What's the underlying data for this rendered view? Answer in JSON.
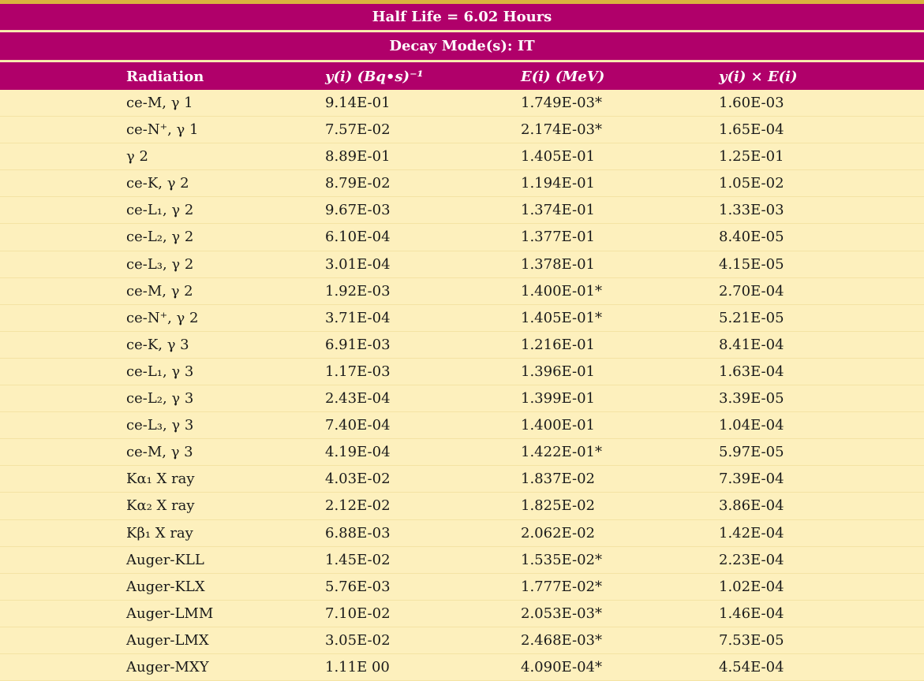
{
  "title_band": "Half Life = 6.02 Hours",
  "mode_band": "Decay Mode(s): IT",
  "headers": {
    "radiation": "Radiation",
    "y": "y(i) (Bq•s)⁻¹",
    "e": "E(i) (MeV)",
    "ye": "y(i) × E(i)"
  },
  "rows": [
    {
      "radiation": "ce-M, γ 1",
      "y": "9.14E-01",
      "e": "1.749E-03*",
      "ye": "1.60E-03"
    },
    {
      "radiation": "ce-N⁺, γ 1",
      "y": "7.57E-02",
      "e": "2.174E-03*",
      "ye": "1.65E-04"
    },
    {
      "radiation": "γ 2",
      "y": "8.89E-01",
      "e": "1.405E-01",
      "ye": "1.25E-01"
    },
    {
      "radiation": "ce-K, γ 2",
      "y": "8.79E-02",
      "e": "1.194E-01",
      "ye": "1.05E-02"
    },
    {
      "radiation": "ce-L₁, γ 2",
      "y": "9.67E-03",
      "e": "1.374E-01",
      "ye": "1.33E-03"
    },
    {
      "radiation": "ce-L₂, γ 2",
      "y": "6.10E-04",
      "e": "1.377E-01",
      "ye": "8.40E-05"
    },
    {
      "radiation": "ce-L₃, γ 2",
      "y": "3.01E-04",
      "e": "1.378E-01",
      "ye": "4.15E-05"
    },
    {
      "radiation": "ce-M, γ 2",
      "y": "1.92E-03",
      "e": "1.400E-01*",
      "ye": "2.70E-04"
    },
    {
      "radiation": "ce-N⁺, γ 2",
      "y": "3.71E-04",
      "e": "1.405E-01*",
      "ye": "5.21E-05"
    },
    {
      "radiation": "ce-K, γ 3",
      "y": "6.91E-03",
      "e": "1.216E-01",
      "ye": "8.41E-04"
    },
    {
      "radiation": "ce-L₁, γ 3",
      "y": "1.17E-03",
      "e": "1.396E-01",
      "ye": "1.63E-04"
    },
    {
      "radiation": "ce-L₂, γ 3",
      "y": "2.43E-04",
      "e": "1.399E-01",
      "ye": "3.39E-05"
    },
    {
      "radiation": "ce-L₃, γ 3",
      "y": "7.40E-04",
      "e": "1.400E-01",
      "ye": "1.04E-04"
    },
    {
      "radiation": "ce-M, γ 3",
      "y": "4.19E-04",
      "e": "1.422E-01*",
      "ye": "5.97E-05"
    },
    {
      "radiation": "Kα₁ X ray",
      "y": "4.03E-02",
      "e": "1.837E-02",
      "ye": "7.39E-04"
    },
    {
      "radiation": "Kα₂ X ray",
      "y": "2.12E-02",
      "e": "1.825E-02",
      "ye": "3.86E-04"
    },
    {
      "radiation": "Kβ₁ X ray",
      "y": "6.88E-03",
      "e": "2.062E-02",
      "ye": "1.42E-04"
    },
    {
      "radiation": "Auger-KLL",
      "y": "1.45E-02",
      "e": "1.535E-02*",
      "ye": "2.23E-04"
    },
    {
      "radiation": "Auger-KLX",
      "y": "5.76E-03",
      "e": "1.777E-02*",
      "ye": "1.02E-04"
    },
    {
      "radiation": "Auger-LMM",
      "y": "7.10E-02",
      "e": "2.053E-03*",
      "ye": "1.46E-04"
    },
    {
      "radiation": "Auger-LMX",
      "y": "3.05E-02",
      "e": "2.468E-03*",
      "ye": "7.53E-05"
    },
    {
      "radiation": "Auger-MXY",
      "y": "1.11E 00",
      "e": "4.090E-04*",
      "ye": "4.54E-04"
    }
  ],
  "colors": {
    "band": "#b0006a",
    "background": "#fdf0bd",
    "topline": "#d9b33e"
  }
}
